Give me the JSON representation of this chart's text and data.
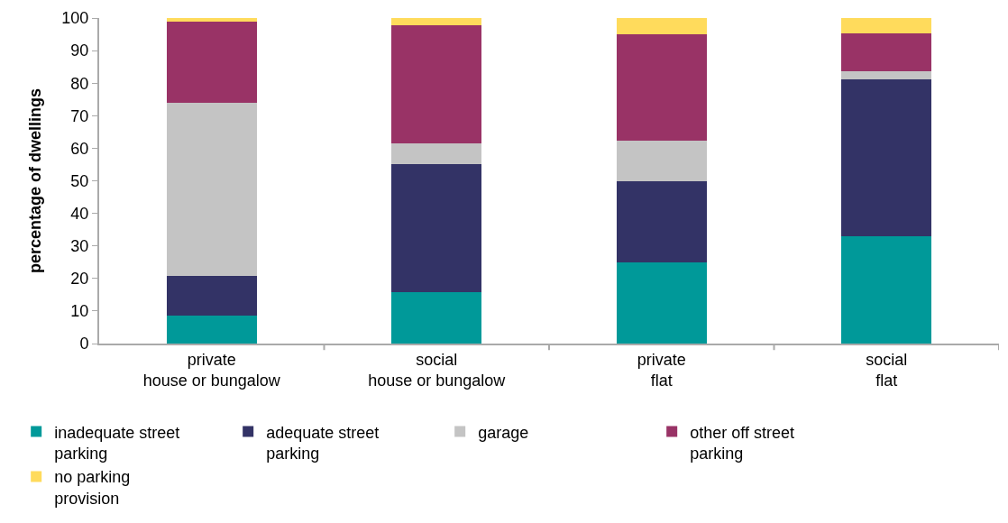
{
  "chart_data": {
    "type": "bar",
    "stacked": true,
    "ylabel": "percentage of dwellings",
    "categories": [
      "private\nhouse or bungalow",
      "social\nhouse or bungalow",
      "private\nflat",
      "social\nflat"
    ],
    "series": [
      {
        "name": "inadequate street\nparking",
        "color": "#009999",
        "values": [
          8.5,
          15.7,
          24.9,
          33.0
        ]
      },
      {
        "name": "adequate street\nparking",
        "color": "#333366",
        "values": [
          12.3,
          39.3,
          25.0,
          48.1
        ]
      },
      {
        "name": "garage",
        "color": "#c4c4c4",
        "values": [
          53.1,
          6.6,
          12.3,
          2.5
        ]
      },
      {
        "name": "other off street\nparking",
        "color": "#993366",
        "values": [
          25.0,
          36.3,
          32.7,
          11.8
        ]
      },
      {
        "name": "no parking\nprovision",
        "color": "#ffdb5c",
        "values": [
          1.1,
          2.1,
          5.1,
          4.6
        ]
      }
    ],
    "ylim": [
      0,
      100
    ],
    "yticks": [
      0,
      10,
      20,
      30,
      40,
      50,
      60,
      70,
      80,
      90,
      100
    ],
    "grid": false,
    "legend": "bottom"
  }
}
